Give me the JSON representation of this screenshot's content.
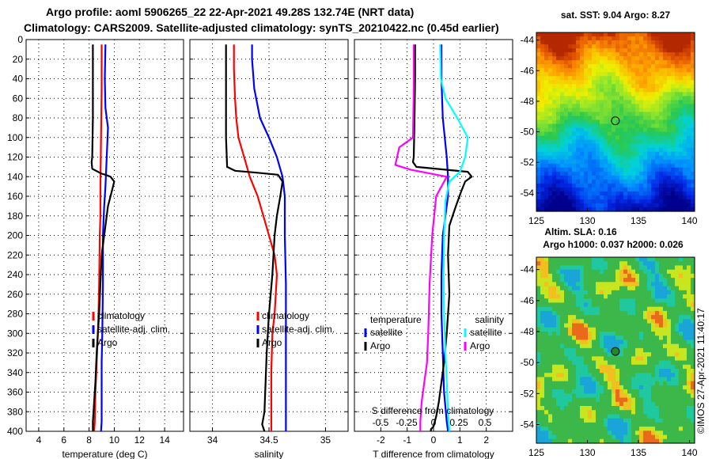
{
  "header": {
    "line1": "Argo profile: aoml 5906265_22 22-Apr-2021 49.28S 132.74E (NRT data)",
    "line2": "Climatology: CARS2009. Satellite-adjusted climatology: synTS_20210422.nc (0.45d earlier)"
  },
  "colors": {
    "climatology": "#ff0000",
    "satellite": "#0000ff",
    "argo": "#000000",
    "sat_salinity": "#00ffff",
    "argo_salinity": "#ff00ff"
  },
  "chart_data": [
    {
      "type": "line",
      "id": "temperature",
      "xlabel": "temperature (deg C)",
      "ylabel": "",
      "xlim": [
        3,
        15.5
      ],
      "ylim": [
        400,
        0
      ],
      "xticks": [
        4,
        6,
        8,
        10,
        12,
        14
      ],
      "yticks": [
        0,
        20,
        40,
        60,
        80,
        100,
        120,
        140,
        160,
        180,
        200,
        220,
        240,
        260,
        280,
        300,
        320,
        340,
        360,
        380,
        400
      ],
      "grid": true,
      "legend": [
        "climatology",
        "satellite-adj. clim.",
        "Argo"
      ],
      "series": [
        {
          "name": "climatology",
          "color": "#ff0000",
          "x": [
            9.0,
            9.0,
            8.95,
            8.9,
            8.9,
            8.85,
            8.8,
            8.75,
            8.7,
            8.6,
            8.5,
            8.45,
            8.4
          ],
          "y": [
            5,
            50,
            100,
            150,
            180,
            200,
            250,
            280,
            300,
            330,
            360,
            390,
            400
          ]
        },
        {
          "name": "satellite-adj. clim.",
          "color": "#0000ff",
          "x": [
            9.3,
            9.25,
            9.3,
            9.5,
            9.4,
            9.3,
            9.2,
            9.1,
            9.1,
            9.05,
            9.0,
            9.0,
            9.0,
            8.95
          ],
          "y": [
            5,
            40,
            70,
            90,
            120,
            150,
            170,
            200,
            250,
            300,
            330,
            360,
            390,
            400
          ]
        },
        {
          "name": "Argo",
          "color": "#000000",
          "x": [
            8.3,
            8.3,
            8.3,
            8.25,
            8.2,
            8.25,
            9.0,
            9.3,
            9.7,
            10.0,
            9.8,
            9.5,
            9.4,
            9.2,
            9.0,
            8.9,
            8.8,
            8.7,
            8.6,
            8.5,
            8.4,
            8.3,
            8.3
          ],
          "y": [
            5,
            40,
            80,
            120,
            125,
            132,
            137,
            138,
            140,
            145,
            155,
            170,
            180,
            200,
            220,
            250,
            280,
            300,
            320,
            350,
            370,
            390,
            400
          ]
        }
      ]
    },
    {
      "type": "line",
      "id": "salinity",
      "xlabel": "salinity",
      "ylabel": "",
      "xlim": [
        33.8,
        35.2
      ],
      "ylim": [
        400,
        0
      ],
      "xticks": [
        34,
        34.5,
        35
      ],
      "yticks": [
        0,
        20,
        40,
        60,
        80,
        100,
        120,
        140,
        160,
        180,
        200,
        220,
        240,
        260,
        280,
        300,
        320,
        340,
        360,
        380,
        400
      ],
      "grid": true,
      "legend": [
        "climatology",
        "satellite-adj. clim.",
        "Argo"
      ],
      "series": [
        {
          "name": "climatology",
          "color": "#ff0000",
          "x": [
            34.19,
            34.19,
            34.2,
            34.21,
            34.23,
            34.28,
            34.33,
            34.4,
            34.45,
            34.5,
            34.55,
            34.57,
            34.56,
            34.55,
            34.53,
            34.52,
            34.52,
            34.52
          ],
          "y": [
            5,
            30,
            60,
            80,
            100,
            120,
            140,
            160,
            180,
            200,
            220,
            240,
            260,
            280,
            300,
            340,
            380,
            400
          ]
        },
        {
          "name": "satellite-adj. clim.",
          "color": "#0000ff",
          "x": [
            34.35,
            34.35,
            34.37,
            34.42,
            34.5,
            34.57,
            34.62,
            34.64,
            34.64,
            34.65,
            34.65,
            34.65
          ],
          "y": [
            5,
            20,
            50,
            80,
            100,
            120,
            140,
            160,
            200,
            250,
            300,
            400
          ]
        },
        {
          "name": "Argo",
          "color": "#000000",
          "x": [
            34.12,
            34.12,
            34.12,
            34.13,
            34.2,
            34.4,
            34.58,
            34.62,
            34.6,
            34.57,
            34.55,
            34.53,
            34.5,
            34.48,
            34.47,
            34.46,
            34.44,
            34.46
          ],
          "y": [
            5,
            50,
            100,
            130,
            134,
            136,
            138,
            145,
            160,
            180,
            200,
            240,
            280,
            320,
            350,
            380,
            393,
            400
          ]
        }
      ]
    },
    {
      "type": "line",
      "id": "difference",
      "xlabel": "T difference from climatology",
      "ylabel": "",
      "xlim": [
        -3,
        3
      ],
      "ylim": [
        400,
        0
      ],
      "xticks": [
        -2,
        -1,
        0,
        1,
        2
      ],
      "yticks": [
        0,
        20,
        40,
        60,
        80,
        100,
        120,
        140,
        160,
        180,
        200,
        220,
        240,
        260,
        280,
        300,
        320,
        340,
        360,
        380,
        400
      ],
      "grid": true,
      "secondary_axis": {
        "label": "S difference from climatology",
        "ticks": [
          "-0.5",
          "-0.25",
          "0",
          "0.25",
          "0.5"
        ]
      },
      "legend_groups": [
        {
          "title": "temperature",
          "items": [
            "satellite",
            "Argo"
          ]
        },
        {
          "title": "salinity",
          "items": [
            "satellite",
            "Argo"
          ]
        }
      ],
      "series": [
        {
          "name": "temperature satellite",
          "color": "#0000ff",
          "x": [
            0.3,
            0.3,
            0.35,
            0.5,
            0.55,
            0.55,
            0.45,
            0.35,
            0.3,
            0.3,
            0.35,
            0.4,
            0.5,
            0.55
          ],
          "y": [
            5,
            40,
            80,
            120,
            140,
            160,
            180,
            200,
            240,
            280,
            320,
            360,
            390,
            400
          ]
        },
        {
          "name": "temperature Argo",
          "color": "#000000",
          "x": [
            -0.7,
            -0.7,
            -0.72,
            -0.75,
            -0.78,
            -0.65,
            1.3,
            1.45,
            1.2,
            1.05,
            0.85,
            0.6,
            0.55,
            0.6,
            0.5,
            0.4,
            0.3,
            0.2,
            0.1,
            0.0,
            -0.1,
            -0.1
          ],
          "y": [
            5,
            40,
            80,
            120,
            125,
            130,
            135,
            140,
            145,
            155,
            170,
            190,
            220,
            260,
            300,
            330,
            350,
            370,
            385,
            395,
            398,
            400
          ]
        },
        {
          "name": "salinity satellite",
          "color": "#00ffff",
          "x": [
            0.25,
            0.28,
            0.45,
            0.9,
            1.3,
            1.2,
            1.0,
            0.6,
            0.45,
            0.4,
            0.38,
            0.4,
            0.45,
            0.5,
            0.55,
            0.6
          ],
          "y": [
            5,
            40,
            60,
            80,
            100,
            120,
            135,
            145,
            165,
            200,
            240,
            280,
            320,
            350,
            380,
            400
          ]
        },
        {
          "name": "salinity Argo",
          "color": "#ff00ff",
          "x": [
            -0.75,
            -0.75,
            -0.78,
            -1.3,
            -1.45,
            -0.85,
            0.5,
            0.1,
            -0.05,
            -0.15,
            -0.2,
            -0.25,
            -0.35,
            -0.45,
            -0.5,
            -0.5
          ],
          "y": [
            5,
            50,
            100,
            110,
            128,
            133,
            140,
            160,
            200,
            250,
            300,
            330,
            350,
            370,
            390,
            400
          ]
        }
      ]
    },
    {
      "type": "heatmap",
      "id": "sst-map",
      "title": "sat. SST: 9.04 Argo: 8.27",
      "xlim": [
        125,
        140.5
      ],
      "ylim": [
        -55.2,
        -43.5
      ],
      "xticks": [
        125,
        130,
        135,
        140
      ],
      "yticks": [
        -44,
        -46,
        -48,
        -50,
        -52,
        -54
      ],
      "marker": {
        "lon": 132.74,
        "lat": -49.28
      }
    },
    {
      "type": "heatmap",
      "id": "sla-map",
      "title_line1": "Altim. SLA: 0.16",
      "title_line2": "Argo h1000: 0.037 h2000: 0.026",
      "xlim": [
        125,
        140.5
      ],
      "ylim": [
        -55.2,
        -43.2
      ],
      "xticks": [
        125,
        130,
        135,
        140
      ],
      "yticks": [
        -44,
        -46,
        -48,
        -50,
        -52,
        -54
      ],
      "marker": {
        "lon": 132.74,
        "lat": -49.28
      }
    }
  ],
  "credit": "©IMOS 27-Apr-2021 11:40:17"
}
